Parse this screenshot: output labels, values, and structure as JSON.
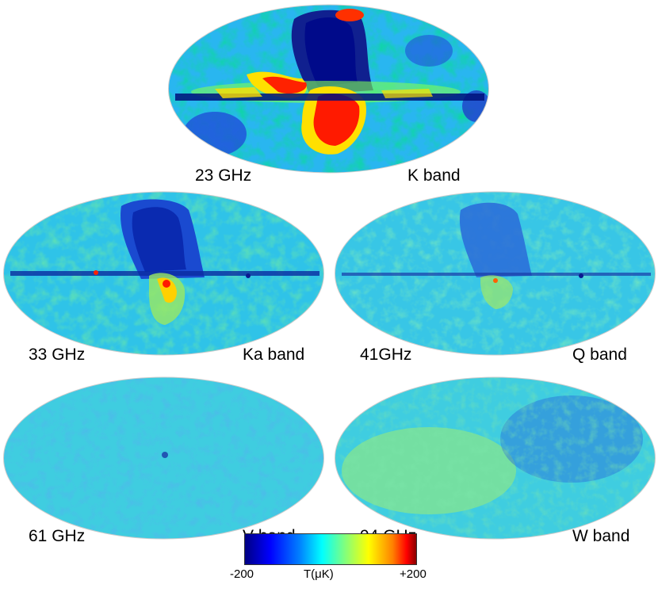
{
  "maps": [
    {
      "freq": "23 GHz",
      "band": "K band"
    },
    {
      "freq": "33 GHz",
      "band": "Ka band"
    },
    {
      "freq": "41GHz",
      "band": "Q band"
    },
    {
      "freq": "61 GHz",
      "band": "V band"
    },
    {
      "freq": "94 GHz",
      "band": "W band"
    }
  ],
  "colorbar": {
    "min_label": "-200",
    "unit_label": "T(μK)",
    "max_label": "+200"
  },
  "colors": {
    "deep_blue": "#00007f",
    "blue": "#0000ff",
    "cyan": "#00ffff",
    "green": "#7fff7f",
    "yellow": "#ffff00",
    "red": "#ff0000"
  }
}
